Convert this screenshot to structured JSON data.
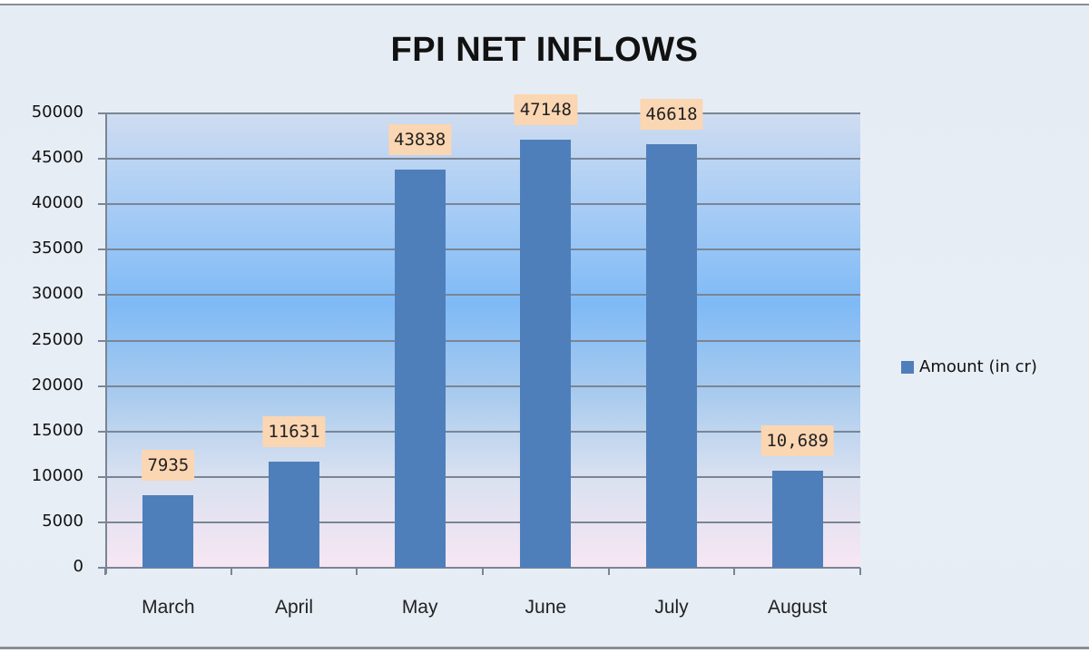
{
  "chart": {
    "title": "FPI NET INFLOWS",
    "legend_label": "Amount (in cr)",
    "colors": {
      "bar": "#4f7fbb",
      "data_label_bg": "#fbd6b2"
    },
    "yticks": [
      "50000",
      "45000",
      "40000",
      "35000",
      "30000",
      "25000",
      "20000",
      "15000",
      "10000",
      "5000",
      "0"
    ],
    "categories": [
      "March",
      "April",
      "May",
      "June",
      "July",
      "August"
    ],
    "labels": [
      "7935",
      "11631",
      "43838",
      "47148",
      "46618",
      "10,689"
    ]
  },
  "chart_data": {
    "type": "bar",
    "title": "FPI NET INFLOWS",
    "categories": [
      "March",
      "April",
      "May",
      "June",
      "July",
      "August"
    ],
    "series": [
      {
        "name": "Amount (in cr)",
        "values": [
          7935,
          11631,
          43838,
          47148,
          46618,
          10689
        ]
      }
    ],
    "data_labels": [
      "7935",
      "11631",
      "43838",
      "47148",
      "46618",
      "10,689"
    ],
    "xlabel": "",
    "ylabel": "",
    "ylim": [
      0,
      50000
    ],
    "yticks": [
      0,
      5000,
      10000,
      15000,
      20000,
      25000,
      30000,
      35000,
      40000,
      45000,
      50000
    ],
    "grid": true,
    "legend_position": "right"
  }
}
